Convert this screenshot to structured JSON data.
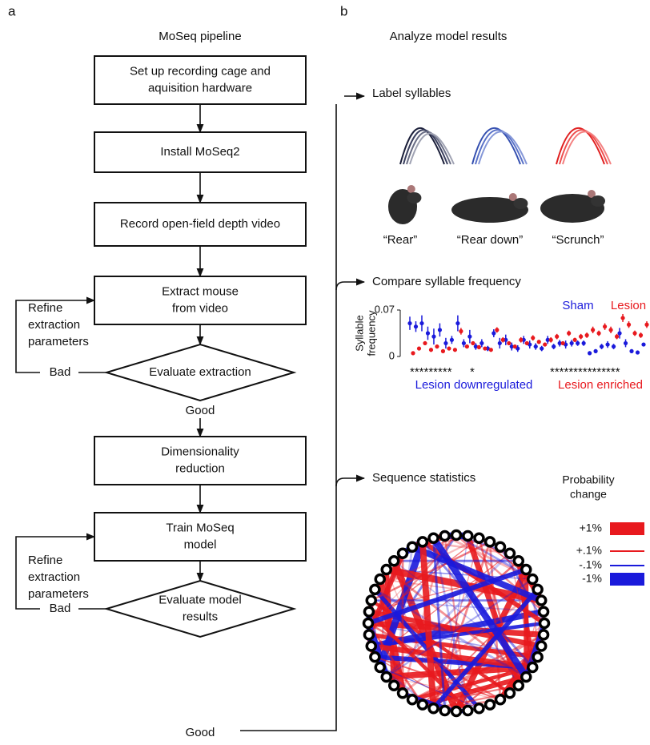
{
  "panel_labels": [
    "a",
    "b"
  ],
  "flowchart": {
    "title": "MoSeq pipeline",
    "steps": [
      {
        "lines": [
          "Set up recording cage and",
          "aquisition hardware"
        ]
      },
      {
        "lines": [
          "Install MoSeq2"
        ]
      },
      {
        "lines": [
          "Record open-field depth video"
        ]
      },
      {
        "lines": [
          "Extract mouse",
          "from video"
        ]
      },
      {
        "lines": [
          "Dimensionality",
          "reduction"
        ]
      },
      {
        "lines": [
          "Train MoSeq",
          "model"
        ]
      }
    ],
    "decisions": [
      {
        "lines": [
          "Evaluate extraction"
        ],
        "bad": "Bad",
        "good": "Good",
        "refine": [
          "Refine",
          "extraction",
          "parameters"
        ]
      },
      {
        "lines": [
          "Evaluate model",
          "results"
        ],
        "bad": "Bad",
        "good": "Good",
        "refine": [
          "Refine",
          "extraction",
          "parameters"
        ]
      }
    ]
  },
  "analysis": {
    "title": "Analyze model results",
    "sections": [
      "Label syllables",
      "Compare syllable frequency",
      "Sequence statistics"
    ],
    "syllables": [
      "“Rear”",
      "“Rear down”",
      "“Scrunch”"
    ],
    "significance": [
      "*********",
      "*",
      "***************"
    ],
    "group_labels": [
      "Lesion downregulated",
      "Lesion enriched"
    ],
    "network_legend": {
      "title": [
        "Probability",
        "change"
      ],
      "items": [
        "+1%",
        "+.1%",
        "-.1%",
        "-1%"
      ]
    }
  },
  "chart_data": {
    "type": "errorbar",
    "y_label": [
      "Syllable",
      "frequency"
    ],
    "ylim": [
      0,
      0.07
    ],
    "yticks": [
      0,
      0.07
    ],
    "series": [
      {
        "name": "Sham",
        "color": "#1a1adb",
        "values": [
          0.05,
          0.045,
          0.05,
          0.035,
          0.03,
          0.04,
          0.02,
          0.025,
          0.05,
          0.02,
          0.03,
          0.015,
          0.02,
          0.012,
          0.035,
          0.02,
          0.025,
          0.015,
          0.012,
          0.025,
          0.018,
          0.015,
          0.012,
          0.025,
          0.015,
          0.02,
          0.018,
          0.02,
          0.02,
          0.02,
          0.005,
          0.008,
          0.015,
          0.018,
          0.015,
          0.035,
          0.02,
          0.008,
          0.006,
          0.018
        ],
        "errors": [
          0.01,
          0.008,
          0.012,
          0.01,
          0.012,
          0.01,
          0.008,
          0.006,
          0.012,
          0.006,
          0.01,
          0.005,
          0.006,
          0.004,
          0.006,
          0.008,
          0.008,
          0.006,
          0.005,
          0.006,
          0.006,
          0.005,
          0.004,
          0.006,
          0.004,
          0.005,
          0.006,
          0.005,
          0.004,
          0.004,
          0.003,
          0.003,
          0.004,
          0.005,
          0.004,
          0.008,
          0.006,
          0.003,
          0.003,
          0.002
        ]
      },
      {
        "name": "Lesion",
        "color": "#e8191e",
        "values": [
          0.005,
          0.012,
          0.02,
          0.01,
          0.015,
          0.008,
          0.012,
          0.01,
          0.038,
          0.015,
          0.02,
          0.014,
          0.012,
          0.01,
          0.04,
          0.025,
          0.02,
          0.015,
          0.025,
          0.02,
          0.028,
          0.022,
          0.018,
          0.025,
          0.03,
          0.02,
          0.035,
          0.025,
          0.03,
          0.032,
          0.04,
          0.035,
          0.045,
          0.04,
          0.03,
          0.058,
          0.048,
          0.035,
          0.032,
          0.048
        ],
        "errors": [
          0.002,
          0.003,
          0.003,
          0.003,
          0.003,
          0.002,
          0.003,
          0.002,
          0.005,
          0.003,
          0.003,
          0.003,
          0.002,
          0.002,
          0.004,
          0.004,
          0.003,
          0.003,
          0.004,
          0.003,
          0.004,
          0.003,
          0.003,
          0.004,
          0.004,
          0.003,
          0.004,
          0.003,
          0.004,
          0.004,
          0.005,
          0.004,
          0.005,
          0.005,
          0.004,
          0.006,
          0.005,
          0.004,
          0.004,
          0.005
        ]
      }
    ]
  }
}
